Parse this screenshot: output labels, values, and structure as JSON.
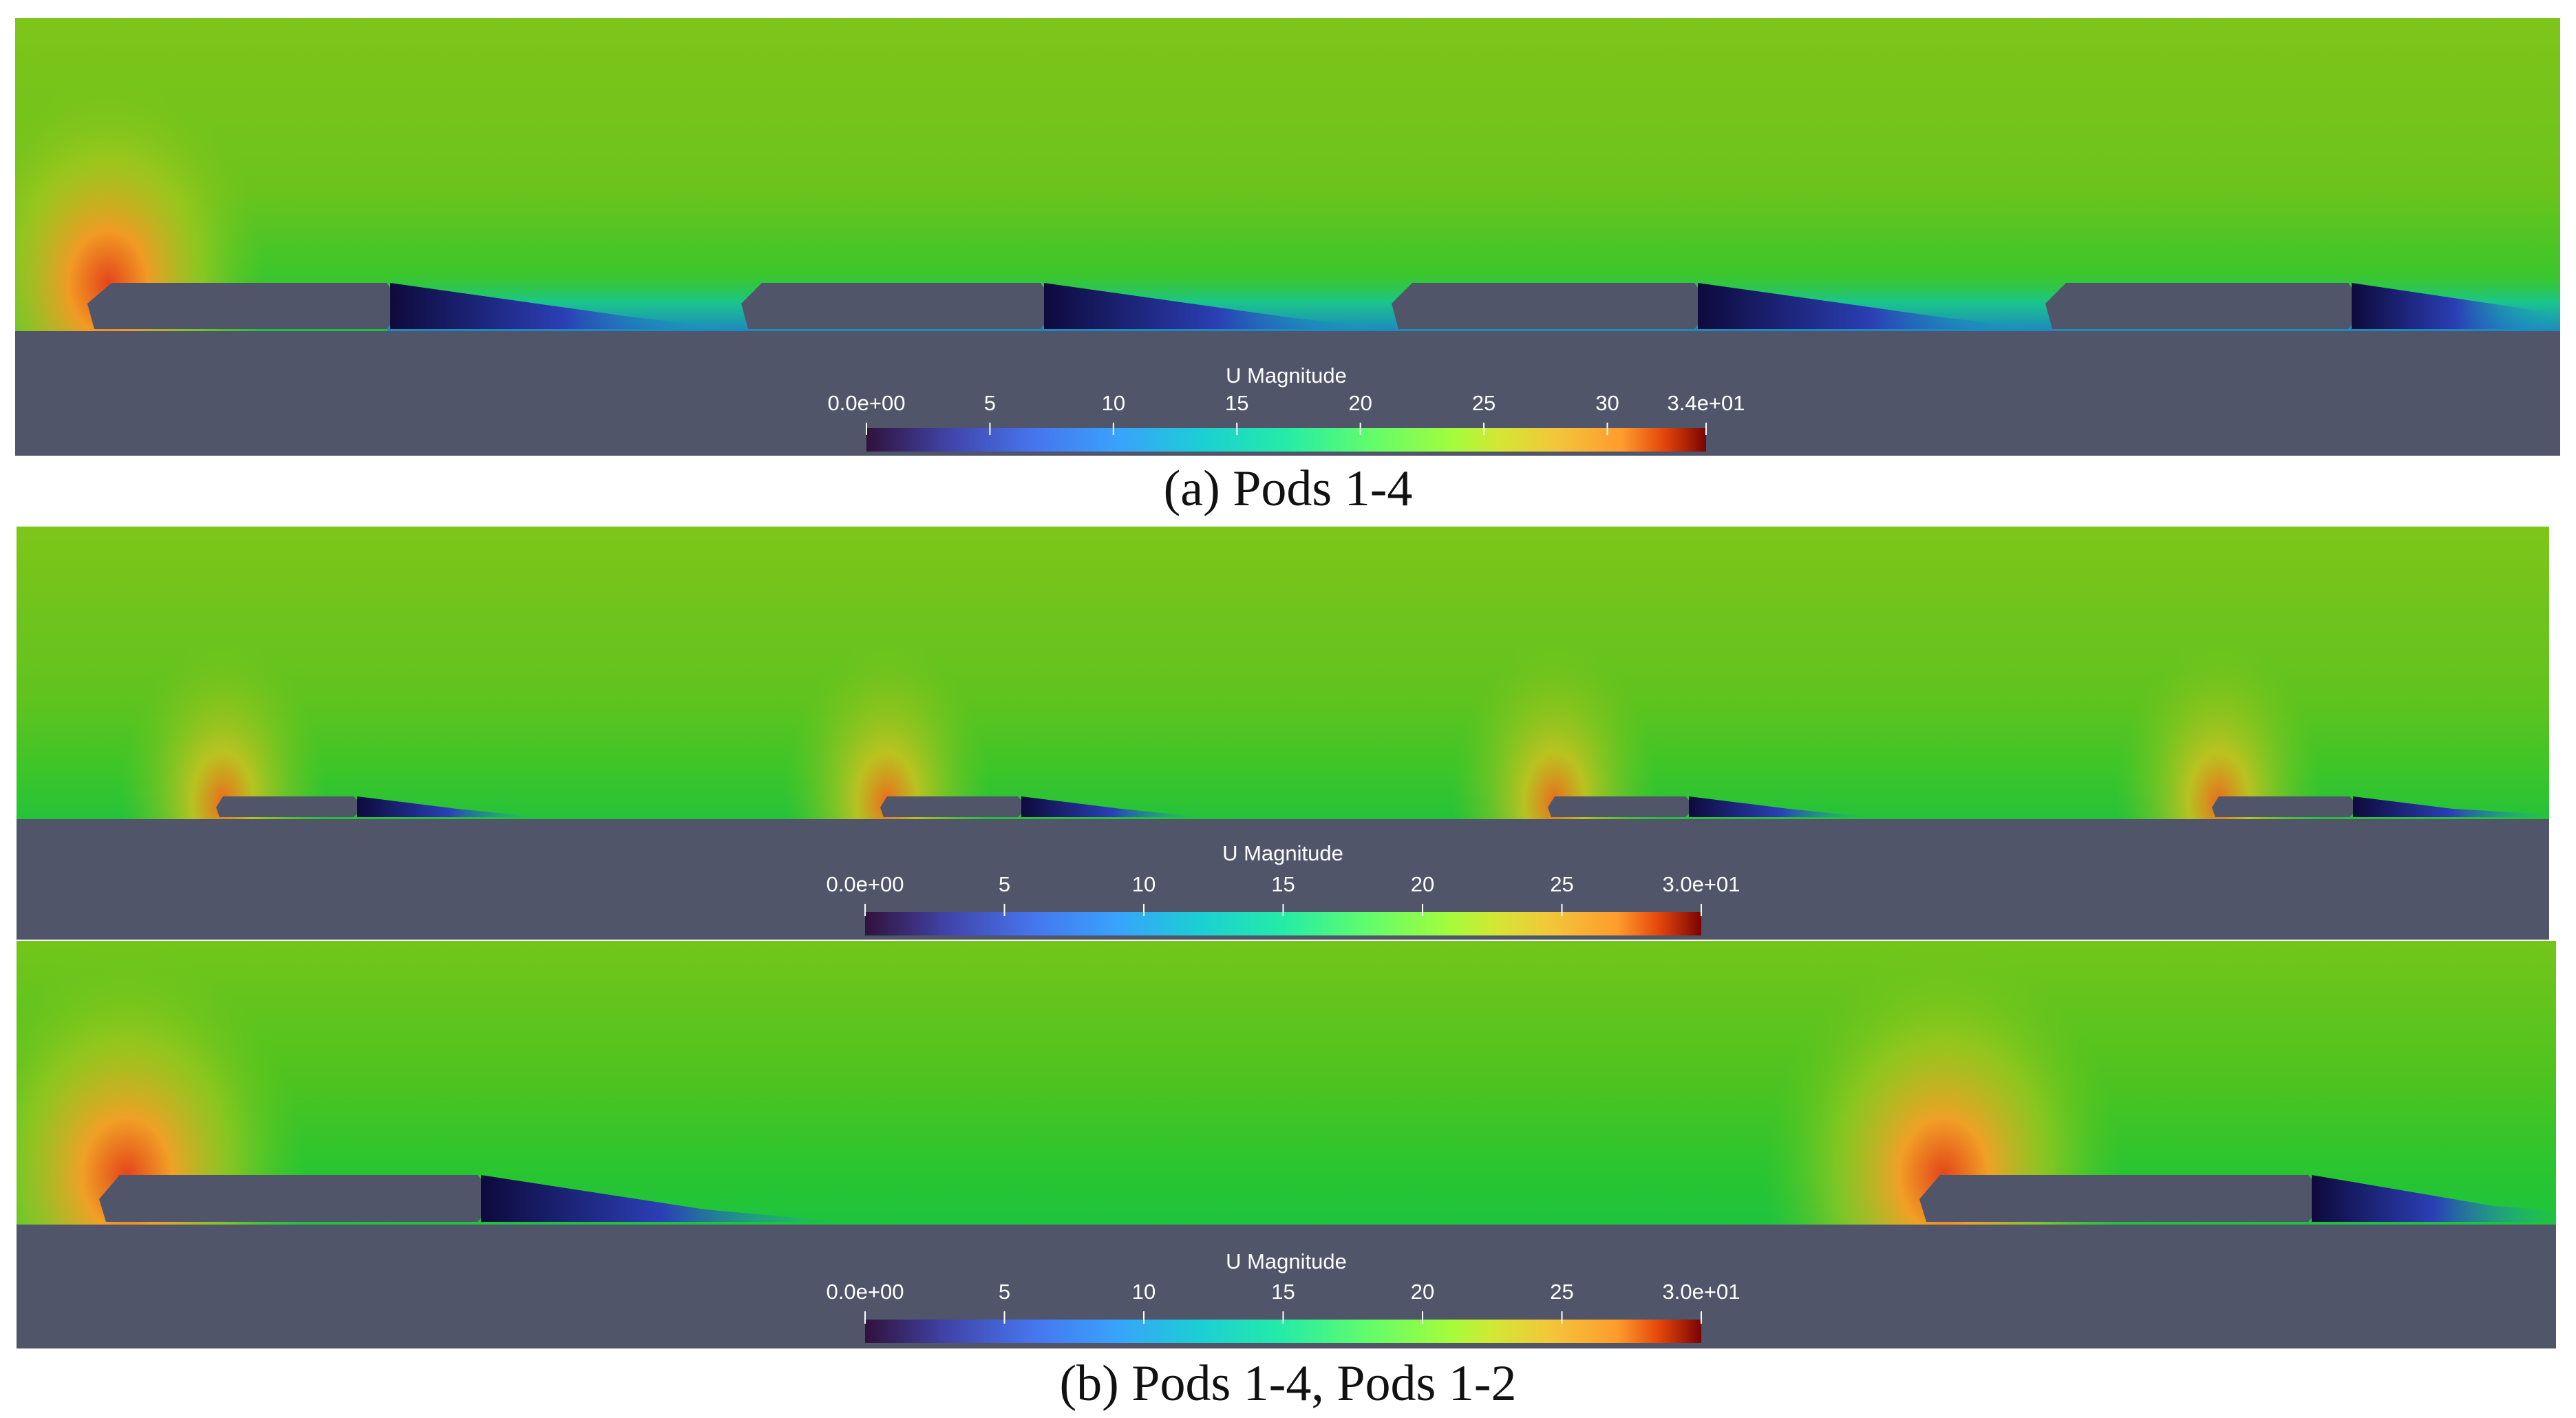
{
  "figure": {
    "panels": [
      {
        "id": "a",
        "colorbar": {
          "title": "U Magnitude",
          "ticks": [
            "0.0e+00",
            "5",
            "10",
            "15",
            "20",
            "25",
            "30",
            "3.4e+01"
          ],
          "min": 0,
          "max": 34,
          "colormap": "turbo"
        },
        "pods": 4
      },
      {
        "id": "b-top",
        "colorbar": {
          "title": "U Magnitude",
          "ticks": [
            "0.0e+00",
            "5",
            "10",
            "15",
            "20",
            "25",
            "3.0e+01"
          ],
          "min": 0,
          "max": 30,
          "colormap": "turbo"
        },
        "pods": 4
      },
      {
        "id": "b-bottom",
        "colorbar": {
          "title": "U Magnitude",
          "ticks": [
            "0.0e+00",
            "5",
            "10",
            "15",
            "20",
            "25",
            "3.0e+01"
          ],
          "min": 0,
          "max": 30,
          "colormap": "turbo"
        },
        "pods": 2
      }
    ],
    "captions": {
      "a": "(a) Pods 1-4",
      "b": "(b) Pods 1-4, Pods 1-2"
    },
    "colors": {
      "ground": "#50556a",
      "pod": "#50556a",
      "freestream": "#7cc417",
      "fieldLight": "#8fc41a",
      "wake": "#1a1456",
      "stagnation": "#d8381a"
    }
  }
}
